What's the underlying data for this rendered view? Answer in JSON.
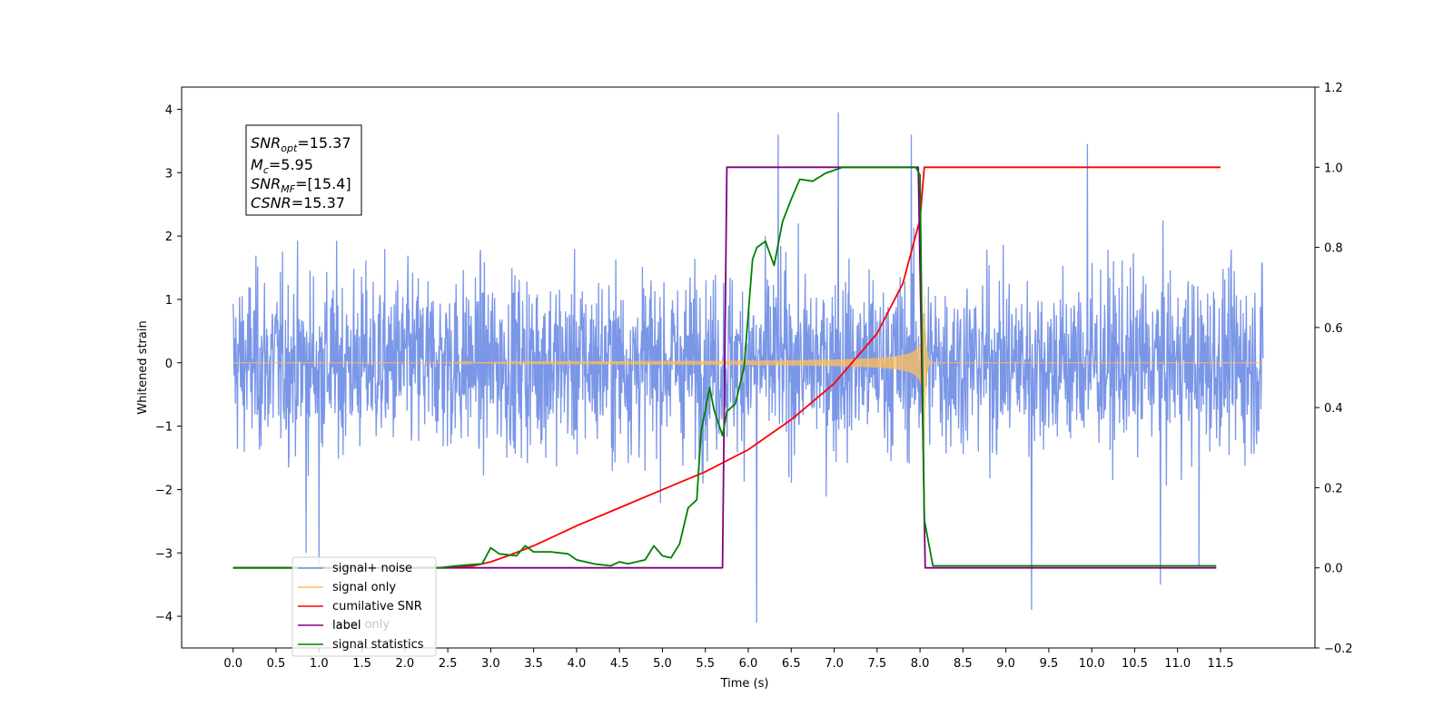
{
  "chart_data": {
    "type": "line",
    "xlabel": "Time (s)",
    "ylabel": "Whitened strain",
    "xlim": [
      -0.6,
      12.6
    ],
    "ylim": [
      -4.5,
      4.35
    ],
    "ylim_right": [
      -0.2,
      1.2
    ],
    "x_ticks": [
      "0.0",
      "0.5",
      "1.0",
      "1.5",
      "2.0",
      "2.5",
      "3.0",
      "3.5",
      "4.0",
      "4.5",
      "5.0",
      "5.5",
      "6.0",
      "6.5",
      "7.0",
      "7.5",
      "8.0",
      "8.5",
      "9.0",
      "9.5",
      "10.0",
      "10.5",
      "11.0",
      "11.5"
    ],
    "y_ticks_left": [
      "4",
      "3",
      "2",
      "1",
      "0",
      "−1",
      "−2",
      "−3",
      "−4"
    ],
    "y_ticks_right": [
      "1.2",
      "1.0",
      "0.8",
      "0.6",
      "0.4",
      "0.2",
      "0.0",
      "−0.2"
    ],
    "annotation": {
      "lines": [
        {
          "sym": "SNR",
          "sub": "opt",
          "value": "=15.37"
        },
        {
          "sym": "M",
          "sub": "c",
          "value": "=5.95"
        },
        {
          "sym": "SNR",
          "sub": "MF",
          "value": "=[15.4]"
        },
        {
          "sym": "CSNR",
          "sub": "",
          "value": "=15.37"
        }
      ]
    },
    "legend": {
      "position": "lower-left",
      "entries": [
        {
          "label": "signal+ noise",
          "color": "#7390e6"
        },
        {
          "label": "signal only",
          "color": "#ffbf5a"
        },
        {
          "label": "cumilative SNR",
          "color": "#ff0000"
        },
        {
          "label": "label",
          "color": "#800080"
        },
        {
          "label": "signal statistics",
          "color": "#008000"
        }
      ],
      "hidden_text": "label only"
    },
    "series": [
      {
        "name": "signal+ noise",
        "axis": "left",
        "color": "#7390e6",
        "kind": "noise",
        "x_range": [
          0.0,
          12.0
        ],
        "sigma": 0.7,
        "outliers": [
          [
            6.35,
            3.6
          ],
          [
            7.05,
            3.95
          ],
          [
            7.9,
            3.6
          ],
          [
            9.95,
            3.45
          ],
          [
            6.1,
            -4.1
          ],
          [
            9.3,
            -3.9
          ],
          [
            1.0,
            -3.2
          ],
          [
            0.85,
            -3.0
          ],
          [
            10.8,
            -3.5
          ],
          [
            11.25,
            -3.2
          ]
        ]
      },
      {
        "name": "signal only",
        "axis": "left",
        "color": "#ffbf5a",
        "kind": "chirp",
        "x_start": 2.5,
        "x_merge": 8.05
      },
      {
        "name": "cumilative SNR",
        "axis": "right",
        "color": "#ff0000",
        "points": [
          [
            0,
            0
          ],
          [
            2.5,
            0
          ],
          [
            2.8,
            0.005
          ],
          [
            3.0,
            0.015
          ],
          [
            3.2,
            0.03
          ],
          [
            3.5,
            0.055
          ],
          [
            4.0,
            0.105
          ],
          [
            4.5,
            0.15
          ],
          [
            5.0,
            0.195
          ],
          [
            5.5,
            0.24
          ],
          [
            6.0,
            0.295
          ],
          [
            6.5,
            0.37
          ],
          [
            7.0,
            0.46
          ],
          [
            7.5,
            0.585
          ],
          [
            7.8,
            0.71
          ],
          [
            8.0,
            0.87
          ],
          [
            8.05,
            1.0
          ],
          [
            11.5,
            1.0
          ]
        ]
      },
      {
        "name": "label",
        "axis": "right",
        "color": "#800080",
        "points": [
          [
            0,
            0
          ],
          [
            5.7,
            0
          ],
          [
            5.75,
            1.0
          ],
          [
            7.98,
            1.0
          ],
          [
            8.06,
            0
          ],
          [
            11.45,
            0
          ]
        ]
      },
      {
        "name": "signal statistics",
        "axis": "right",
        "color": "#008000",
        "points": [
          [
            0,
            0
          ],
          [
            2.4,
            0
          ],
          [
            2.6,
            0.005
          ],
          [
            2.9,
            0.01
          ],
          [
            3.0,
            0.05
          ],
          [
            3.1,
            0.035
          ],
          [
            3.3,
            0.03
          ],
          [
            3.4,
            0.055
          ],
          [
            3.5,
            0.04
          ],
          [
            3.7,
            0.04
          ],
          [
            3.9,
            0.035
          ],
          [
            4.0,
            0.02
          ],
          [
            4.2,
            0.01
          ],
          [
            4.4,
            0.005
          ],
          [
            4.5,
            0.015
          ],
          [
            4.6,
            0.01
          ],
          [
            4.8,
            0.02
          ],
          [
            4.9,
            0.055
          ],
          [
            5.0,
            0.03
          ],
          [
            5.1,
            0.025
          ],
          [
            5.2,
            0.06
          ],
          [
            5.3,
            0.15
          ],
          [
            5.4,
            0.17
          ],
          [
            5.45,
            0.34
          ],
          [
            5.55,
            0.45
          ],
          [
            5.6,
            0.395
          ],
          [
            5.7,
            0.33
          ],
          [
            5.75,
            0.39
          ],
          [
            5.85,
            0.41
          ],
          [
            5.95,
            0.5
          ],
          [
            6.05,
            0.77
          ],
          [
            6.1,
            0.8
          ],
          [
            6.2,
            0.815
          ],
          [
            6.3,
            0.755
          ],
          [
            6.4,
            0.865
          ],
          [
            6.5,
            0.92
          ],
          [
            6.6,
            0.97
          ],
          [
            6.75,
            0.965
          ],
          [
            6.9,
            0.985
          ],
          [
            7.1,
            1.0
          ],
          [
            7.95,
            1.0
          ],
          [
            8.0,
            0.98
          ],
          [
            8.05,
            0.12
          ],
          [
            8.15,
            0.005
          ],
          [
            11.45,
            0.005
          ]
        ]
      }
    ]
  }
}
